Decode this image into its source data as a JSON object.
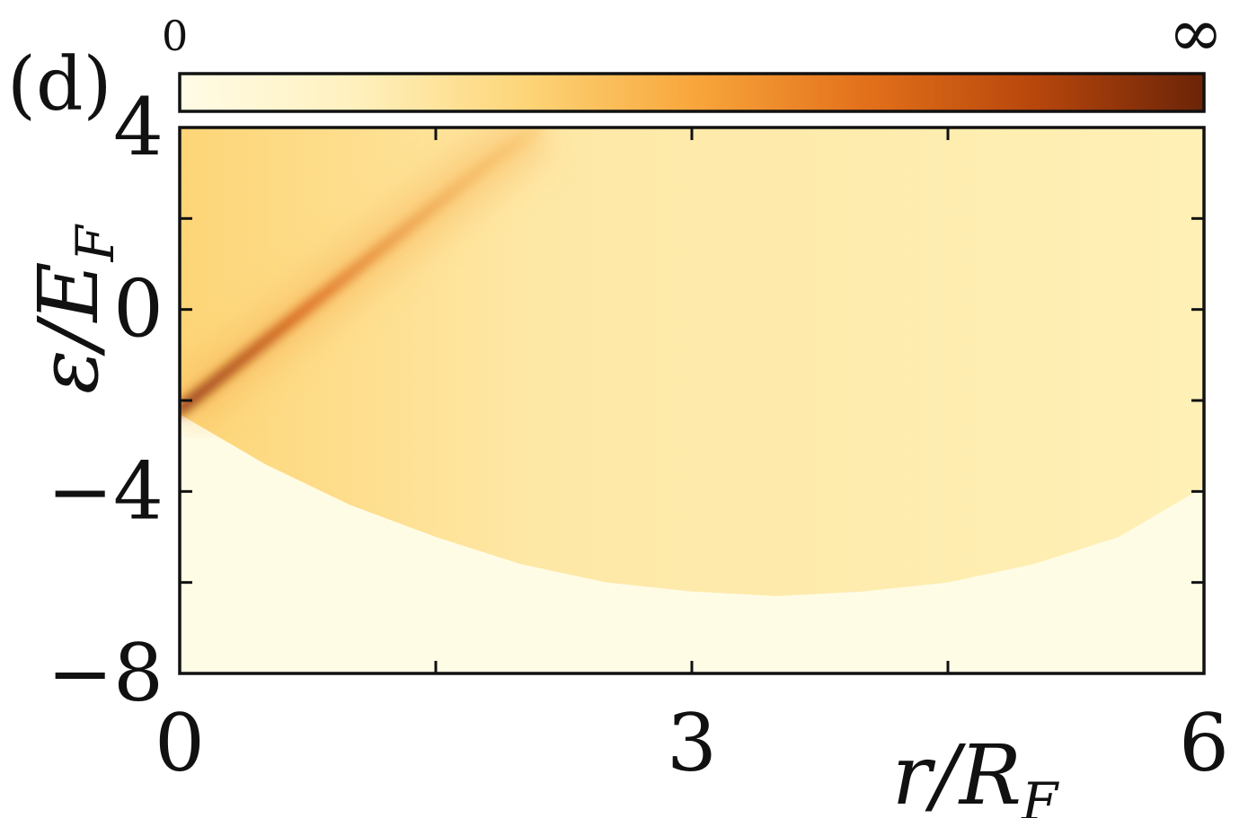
{
  "panel_label": "(d)",
  "chart_data": {
    "type": "heatmap",
    "xlabel": "r/R_F",
    "ylabel": "ε/E_F",
    "xlim": [
      0,
      6
    ],
    "ylim": [
      -8,
      4
    ],
    "x_ticks": [
      0,
      1.5,
      3,
      4.5,
      6
    ],
    "x_tick_labels": [
      "0",
      "",
      "3",
      "",
      "6"
    ],
    "y_ticks": [
      -8,
      -6,
      -4,
      -2,
      0,
      2,
      4
    ],
    "y_tick_labels": [
      "−8",
      "",
      "−4",
      "",
      "0",
      "",
      "4"
    ],
    "colorbar": {
      "min_label": "0",
      "max_label": "∞",
      "colors": [
        "#fffbe6",
        "#fff1bf",
        "#fdd67a",
        "#f8a73c",
        "#e3711b",
        "#b8470c",
        "#6b2408"
      ]
    },
    "features": {
      "band_bottom_edge": {
        "x": [
          0,
          0.5,
          1,
          1.5,
          2,
          2.5,
          3,
          3.5,
          4,
          4.5,
          5,
          5.5,
          6
        ],
        "y": [
          -2.3,
          -3.4,
          -4.3,
          -5.0,
          -5.6,
          -6.0,
          -6.2,
          -6.3,
          -6.2,
          -6.0,
          -5.6,
          -5.0,
          -3.9
        ]
      },
      "resonance_ridge": {
        "x": [
          0,
          0.3,
          0.6,
          1.0,
          1.4,
          1.8,
          2.1
        ],
        "y": [
          -2.2,
          -1.3,
          -0.4,
          0.8,
          2.0,
          3.2,
          4.0
        ]
      }
    },
    "grid": false,
    "legend": "none"
  }
}
